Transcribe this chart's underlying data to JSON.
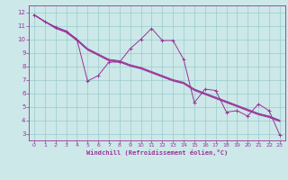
{
  "bg_color": "#cce8e8",
  "line_color": "#993399",
  "grid_color": "#99cccc",
  "xlabel": "Windchill (Refroidissement éolien,°C)",
  "xlim": [
    -0.5,
    23.5
  ],
  "ylim": [
    2.5,
    12.5
  ],
  "yticks": [
    3,
    4,
    5,
    6,
    7,
    8,
    9,
    10,
    11,
    12
  ],
  "xticks": [
    0,
    1,
    2,
    3,
    4,
    5,
    6,
    7,
    8,
    9,
    10,
    11,
    12,
    13,
    14,
    15,
    16,
    17,
    18,
    19,
    20,
    21,
    22,
    23
  ],
  "series1_x": [
    0,
    1,
    2,
    3,
    4,
    5,
    6,
    7,
    8,
    9,
    10,
    11,
    12,
    13,
    14,
    15,
    16,
    17,
    18,
    19,
    20,
    21,
    22,
    23
  ],
  "series1_y": [
    11.8,
    11.3,
    10.9,
    10.6,
    10.0,
    6.9,
    7.3,
    8.3,
    8.3,
    9.3,
    10.0,
    10.8,
    9.9,
    9.9,
    8.5,
    5.3,
    6.3,
    6.2,
    4.6,
    4.7,
    4.3,
    5.2,
    4.7,
    2.9
  ],
  "series2_x": [
    0,
    1,
    2,
    3,
    4,
    5,
    6,
    7,
    8,
    9,
    10,
    11,
    12,
    13,
    14,
    15,
    16,
    17,
    18,
    19,
    20,
    21,
    22,
    23
  ],
  "series2_y": [
    11.8,
    11.3,
    10.9,
    10.6,
    10.0,
    9.3,
    8.9,
    8.5,
    8.4,
    8.1,
    7.9,
    7.6,
    7.3,
    7.0,
    6.8,
    6.3,
    6.0,
    5.7,
    5.4,
    5.1,
    4.8,
    4.5,
    4.3,
    4.0
  ],
  "series3_x": [
    0,
    1,
    2,
    3,
    4,
    5,
    6,
    7,
    8,
    9,
    10,
    11,
    12,
    13,
    14,
    15,
    16,
    17,
    18,
    19,
    20,
    21,
    22,
    23
  ],
  "series3_y": [
    11.8,
    11.3,
    10.85,
    10.55,
    9.95,
    9.25,
    8.85,
    8.45,
    8.35,
    8.05,
    7.85,
    7.55,
    7.25,
    6.95,
    6.75,
    6.25,
    5.95,
    5.65,
    5.35,
    5.05,
    4.75,
    4.45,
    4.25,
    3.95
  ],
  "series4_x": [
    0,
    1,
    2,
    3,
    4,
    5,
    6,
    7,
    8,
    9,
    10,
    11,
    12,
    13,
    14,
    15,
    16,
    17,
    18,
    19,
    20,
    21,
    22,
    23
  ],
  "series4_y": [
    11.8,
    11.3,
    10.8,
    10.5,
    9.9,
    9.2,
    8.8,
    8.4,
    8.3,
    8.0,
    7.8,
    7.5,
    7.2,
    6.9,
    6.7,
    6.2,
    5.9,
    5.6,
    5.3,
    5.0,
    4.7,
    4.4,
    4.2,
    3.9
  ]
}
